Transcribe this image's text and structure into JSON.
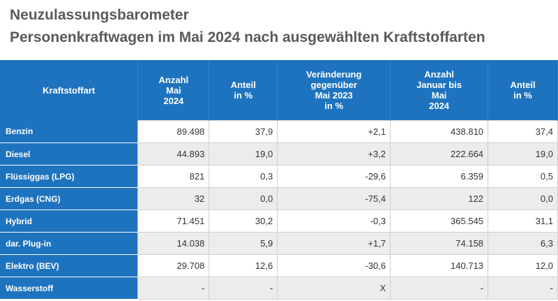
{
  "header": {
    "title": "Neuzulassungsbarometer",
    "subtitle": "Personenkraftwagen im Mai 2024 nach ausgewählten Kraftstoffarten"
  },
  "table": {
    "columns": [
      [
        "Kraftstoffart"
      ],
      [
        "Anzahl",
        "Mai",
        "2024"
      ],
      [
        "Anteil",
        "in %"
      ],
      [
        "Veränderung",
        "gegenüber",
        "Mai 2023",
        "in %"
      ],
      [
        "Anzahl",
        "Januar bis",
        "Mai",
        "2024"
      ],
      [
        "Anteil",
        "in %"
      ]
    ],
    "rows": [
      [
        "Benzin",
        "89.498",
        "37,9",
        "+2,1",
        "438.810",
        "37,4"
      ],
      [
        "Diesel",
        "44.893",
        "19,0",
        "+3,2",
        "222.664",
        "19,0"
      ],
      [
        "Flüssiggas (LPG)",
        "821",
        "0,3",
        "-29,6",
        "6.359",
        "0,5"
      ],
      [
        "Erdgas (CNG)",
        "32",
        "0,0",
        "-75,4",
        "122",
        "0,0"
      ],
      [
        "Hybrid",
        "71.451",
        "30,2",
        "-0,3",
        "365.545",
        "31,1"
      ],
      [
        "dar. Plug-in",
        "14.038",
        "5,9",
        "+1,7",
        "74.158",
        "6,3"
      ],
      [
        "Elektro (BEV)",
        "29.708",
        "12,6",
        "-30,6",
        "140.713",
        "12,0"
      ],
      [
        "Wasserstoff",
        "-",
        "-",
        "X",
        "-",
        "-"
      ]
    ]
  }
}
